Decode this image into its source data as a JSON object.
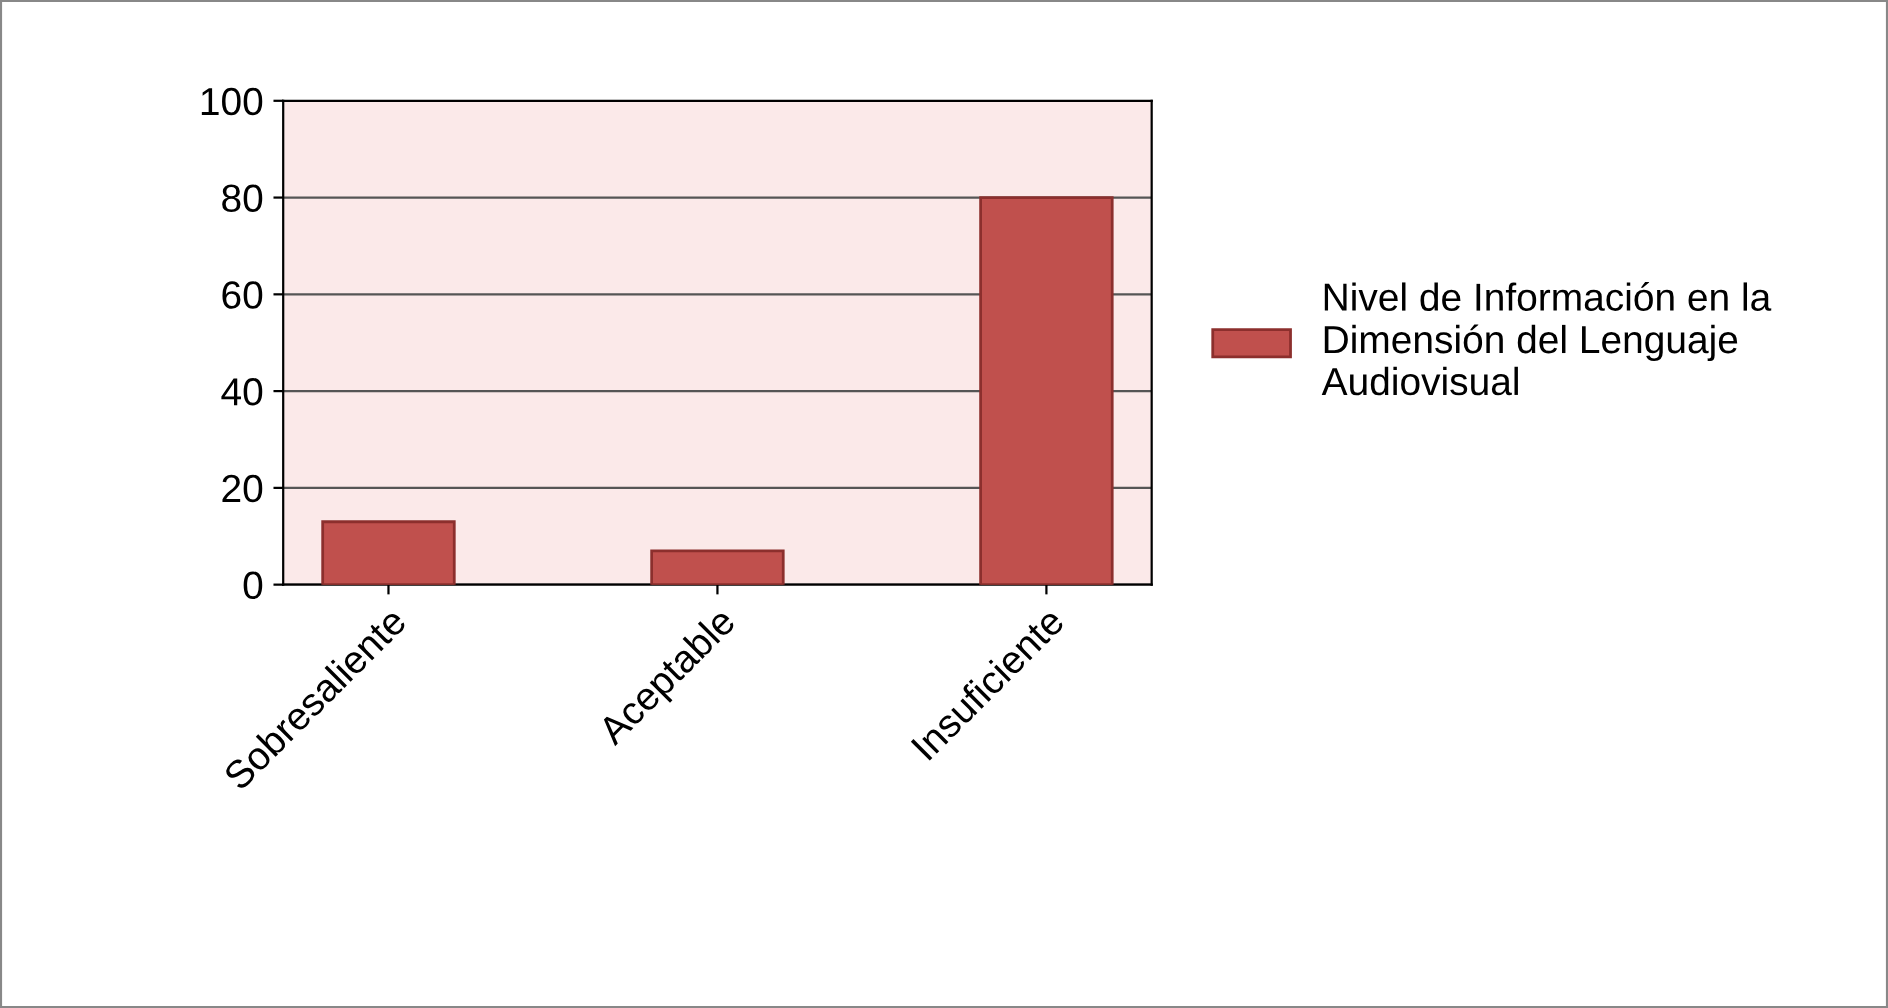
{
  "chart_data": {
    "type": "bar",
    "categories": [
      "Sobresaliente",
      "Aceptable",
      "Insuficiente"
    ],
    "series": [
      {
        "name": "Nivel de Información en la Dimensión del Lenguaje Audiovisual",
        "color": "#c0504d",
        "values": [
          13,
          7,
          80
        ]
      }
    ],
    "ylim": [
      0,
      100
    ],
    "yticks": [
      0,
      20,
      40,
      60,
      80,
      100
    ],
    "grid": "y",
    "legend": "right"
  }
}
